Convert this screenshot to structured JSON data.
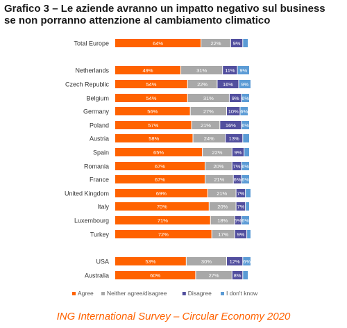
{
  "title_line1": "Grafico 3 – Le aziende avranno un impatto negativo sul business",
  "title_line2": "se non porranno attenzione al cambiamento climatico",
  "footer": "ING International Survey – Circular Economy 2020",
  "chart_data": {
    "type": "bar",
    "orientation": "horizontal",
    "stacked": true,
    "unit": "%",
    "xlim": [
      0,
      100
    ],
    "grid": false,
    "legend_position": "bottom",
    "categories": [
      "Total Europe",
      "Netherlands",
      "Czech Republic",
      "Belgium",
      "Germany",
      "Poland",
      "Austria",
      "Spain",
      "Romania",
      "France",
      "United Kingdom",
      "Italy",
      "Luxembourg",
      "Turkey",
      "USA",
      "Australia"
    ],
    "series": [
      {
        "name": "Agree",
        "color": "#ff6200",
        "values": [
          64,
          49,
          54,
          54,
          56,
          57,
          58,
          65,
          67,
          67,
          69,
          70,
          71,
          72,
          53,
          60
        ]
      },
      {
        "name": "Neither agree/disagree",
        "color": "#a8a8a8",
        "values": [
          22,
          31,
          22,
          31,
          27,
          21,
          24,
          22,
          20,
          21,
          21,
          20,
          18,
          17,
          30,
          27
        ]
      },
      {
        "name": "Disagree",
        "color": "#524f9e",
        "values": [
          9,
          11,
          16,
          9,
          10,
          16,
          13,
          9,
          7,
          6,
          7,
          7,
          5,
          9,
          12,
          8
        ]
      },
      {
        "name": "I don't know",
        "color": "#5b9bd5",
        "values": [
          4,
          9,
          9,
          6,
          6,
          6,
          5,
          4,
          6,
          6,
          4,
          3,
          6,
          3,
          6,
          4
        ]
      }
    ]
  }
}
